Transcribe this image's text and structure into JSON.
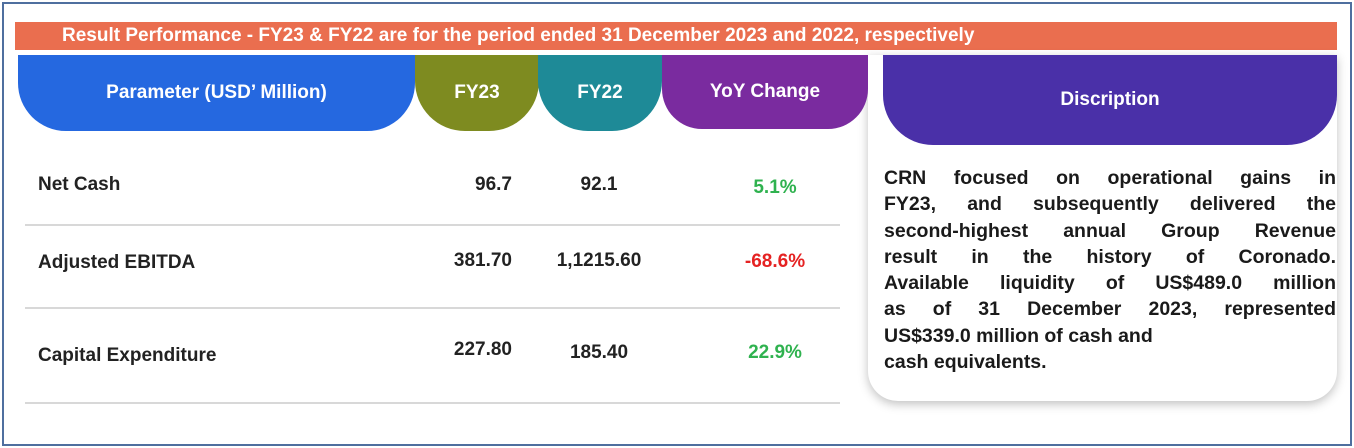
{
  "banner": "Result Performance - FY23 & FY22 are for the period ended 31 December 2023 and 2022, respectively",
  "table": {
    "header": [
      "Parameter (USD’ Million)",
      "FY23",
      "FY22",
      "YoY Change"
    ],
    "rows": [
      [
        "Net Cash",
        "96.7",
        "92.1",
        "5.1%"
      ],
      [
        "Adjusted EBITDA",
        "381.70",
        "1,1215.60",
        "-68.6%"
      ],
      [
        "Capital Expenditure",
        "227.80",
        "185.40",
        "22.9%"
      ]
    ]
  },
  "description": {
    "header": "Discription",
    "lines": [
      "CRN focused on operational gains in",
      "FY23, and subsequently delivered the",
      "second-highest annual Group Revenue",
      "result in the history of Coronado.",
      "Available liquidity of US$489.0 million",
      "as of 31 December 2023, represented",
      "US$339.0 million of cash and",
      "cash equivalents."
    ]
  }
}
